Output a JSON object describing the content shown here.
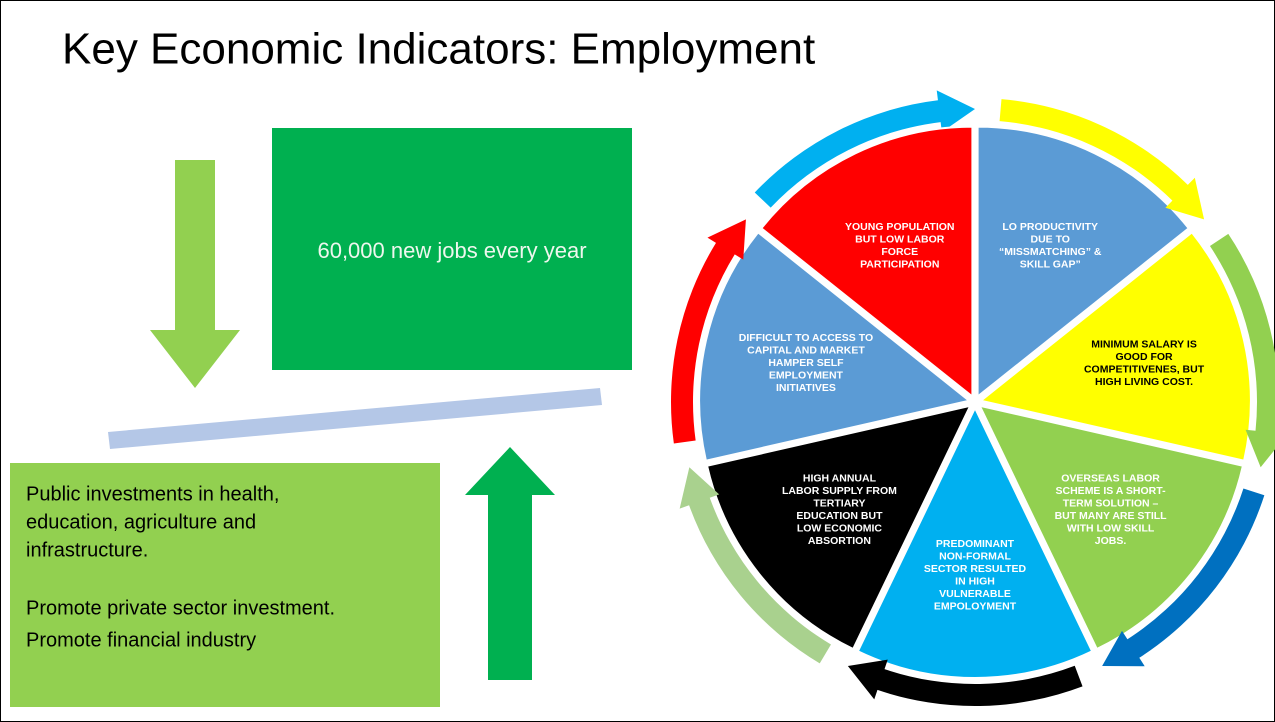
{
  "title": "Key Economic Indicators: Employment",
  "top_box": {
    "text": "60,000 new jobs every year"
  },
  "bottom_box": {
    "lines": [
      "Public investments in health,",
      "education, agriculture and",
      "infrastructure.",
      "Promote private sector investment.",
      "Promote financial industry"
    ]
  },
  "cycle": {
    "segments": [
      {
        "lines": [
          "LO PRODUCTIVITY",
          "DUE TO",
          "“MISSMATCHING” &",
          "SKILL GAP”"
        ]
      },
      {
        "lines": [
          "MINIMUM SALARY IS",
          "GOOD FOR",
          "COMPETITIVENES, BUT",
          "HIGH LIVING COST."
        ]
      },
      {
        "lines": [
          "OVERSEAS LABOR",
          "SCHEME IS A SHORT-",
          "TERM SOLUTION –",
          "BUT MANY ARE STILL",
          "WITH LOW SKILL",
          "JOBS."
        ]
      },
      {
        "lines": [
          "PREDOMINANT",
          "NON-FORMAL",
          "SECTOR RESULTED",
          "IN HIGH",
          "VULNERABLE",
          "EMPOLOYMENT"
        ]
      },
      {
        "lines": [
          "HIGH ANNUAL",
          "LABOR SUPPLY FROM",
          "TERTIARY",
          "EDUCATION BUT",
          "LOW ECONOMIC",
          "ABSORTION"
        ]
      },
      {
        "lines": [
          "DIFFICULT TO  ACCESS TO",
          "CAPITAL AND MARKET",
          "HAMPER SELF",
          "EMPLOYMENT",
          "INITIATIVES"
        ]
      },
      {
        "lines": [
          "YOUNG POPULATION",
          "BUT LOW LABOR",
          "FORCE",
          "PARTICIPATION"
        ]
      }
    ]
  }
}
